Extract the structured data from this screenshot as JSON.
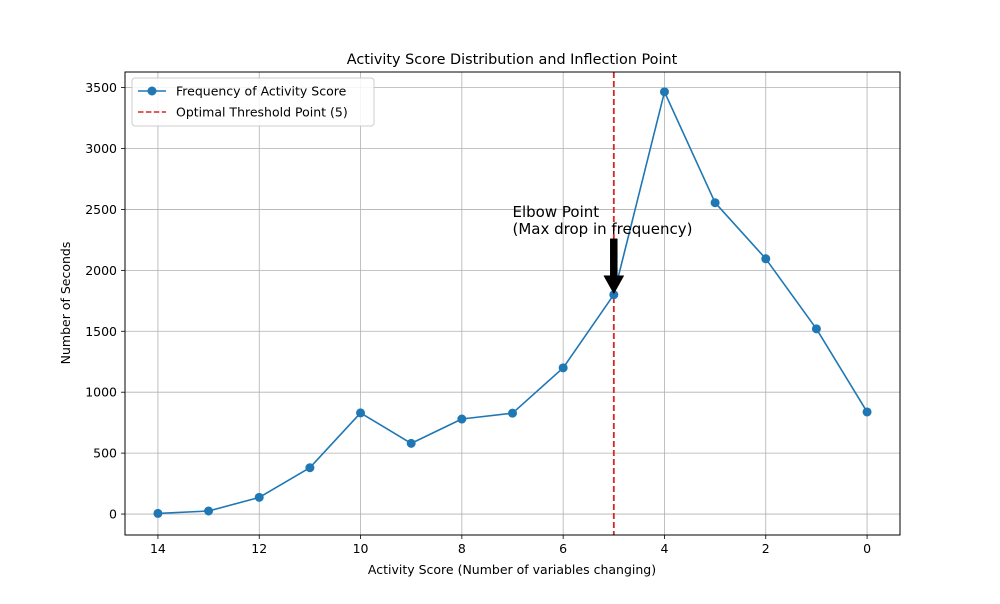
{
  "chart_data": {
    "type": "line",
    "title": "Activity Score Distribution and Inflection Point",
    "xlabel": "Activity Score (Number of variables changing)",
    "ylabel": "Number of Seconds",
    "xlim": [
      14.65,
      -0.65
    ],
    "ylim": [
      -172,
      3628
    ],
    "x_inverted": true,
    "grid": true,
    "legend_position": "top-left",
    "x_ticks": [
      14,
      12,
      10,
      8,
      6,
      4,
      2,
      0
    ],
    "x_tick_labels": [
      "14",
      "12",
      "10",
      "8",
      "6",
      "4",
      "2",
      "0"
    ],
    "y_ticks": [
      0,
      500,
      1000,
      1500,
      2000,
      2500,
      3000,
      3500
    ],
    "y_tick_labels": [
      "0",
      "500",
      "1000",
      "1500",
      "2000",
      "2500",
      "3000",
      "3500"
    ],
    "series": [
      {
        "name": "Frequency of Activity Score",
        "color": "#1f77b4",
        "marker": "circle",
        "x": [
          14,
          13,
          12,
          11,
          10,
          9,
          8,
          7,
          6,
          5,
          4,
          3,
          2,
          1,
          0
        ],
        "y": [
          5,
          25,
          137,
          380,
          830,
          580,
          780,
          828,
          1200,
          1800,
          3465,
          2555,
          2095,
          1520,
          838
        ]
      }
    ],
    "threshold": {
      "label": "Optimal Threshold Point (5)",
      "x": 5,
      "color": "#d62728",
      "style": "dashed"
    },
    "annotation": {
      "text_lines": [
        "Elbow Point",
        "(Max drop in frequency)"
      ],
      "point_x": 5,
      "point_y": 1800,
      "text_x": 7,
      "text_y": 2300,
      "arrow_color": "#000000"
    }
  }
}
